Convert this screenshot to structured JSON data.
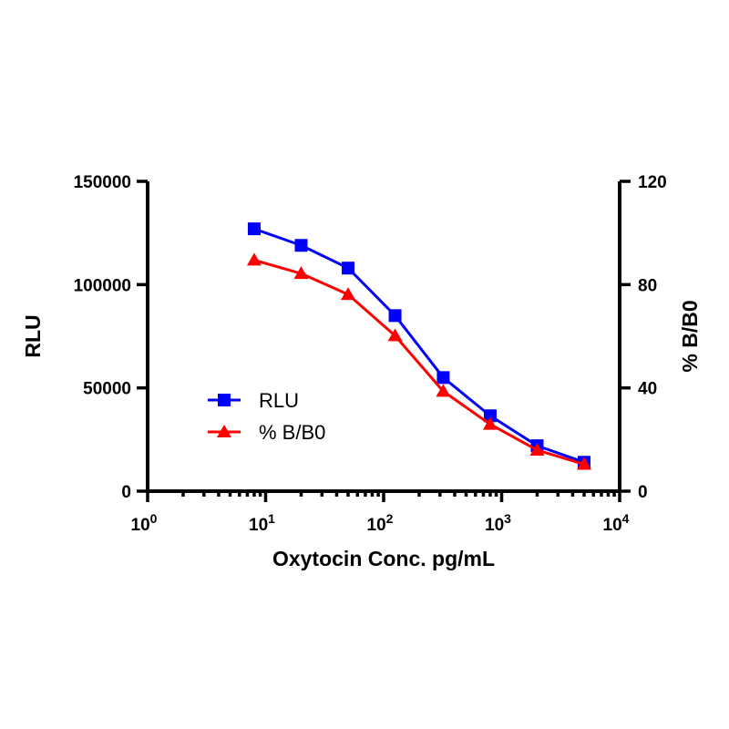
{
  "chart_data": {
    "type": "line",
    "x_scale": "log",
    "x": [
      8,
      20,
      50,
      125,
      320,
      800,
      2000,
      5000
    ],
    "xlim": [
      1,
      10000
    ],
    "x_ticks": [
      1,
      10,
      100,
      1000,
      10000
    ],
    "x_tick_labels": [
      {
        "base": "10",
        "exp": "0"
      },
      {
        "base": "10",
        "exp": "1"
      },
      {
        "base": "10",
        "exp": "2"
      },
      {
        "base": "10",
        "exp": "3"
      },
      {
        "base": "10",
        "exp": "4"
      }
    ],
    "xlabel": "Oxytocin Conc. pg/mL",
    "ylabel_left": "RLU",
    "ylim_left": [
      0,
      150000
    ],
    "y_ticks_left": [
      "0",
      "50000",
      "100000",
      "150000"
    ],
    "ylabel_right": "% B/B0",
    "ylim_right": [
      0,
      120
    ],
    "y_ticks_right": [
      "0",
      "40",
      "80",
      "120"
    ],
    "grid": false,
    "legend_position": "center-left",
    "series": [
      {
        "name": "RLU",
        "axis": "left",
        "marker": "square",
        "color": "#0000ff",
        "values": [
          127000,
          119000,
          108000,
          85000,
          55000,
          36500,
          22000,
          14000
        ]
      },
      {
        "name": "% B/B0",
        "axis": "right",
        "marker": "triangle",
        "color": "#ff0000",
        "values": [
          89.5,
          84.3,
          76.2,
          60.2,
          38.7,
          25.9,
          15.9,
          10.4
        ]
      }
    ]
  }
}
